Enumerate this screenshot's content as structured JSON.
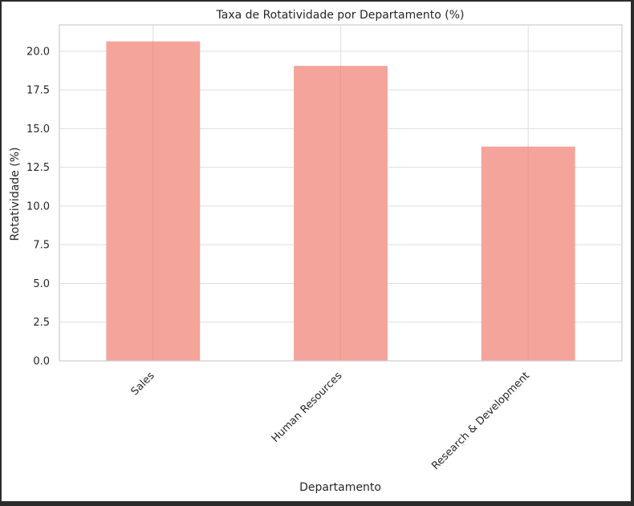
{
  "chart_data": {
    "type": "bar",
    "title": "Taxa de Rotatividade por Departamento (%)",
    "xlabel": "Departamento",
    "ylabel": "Rotatividade (%)",
    "categories": [
      "Sales",
      "Human Resources",
      "Research & Development"
    ],
    "values": [
      20.63,
      19.05,
      13.84
    ],
    "ylim": [
      0,
      21.7
    ],
    "yticks": [
      "0.0",
      "2.5",
      "5.0",
      "7.5",
      "10.0",
      "12.5",
      "15.0",
      "17.5",
      "20.0"
    ],
    "bar_color": "#f4a49a",
    "grid": true,
    "legend": "none"
  }
}
